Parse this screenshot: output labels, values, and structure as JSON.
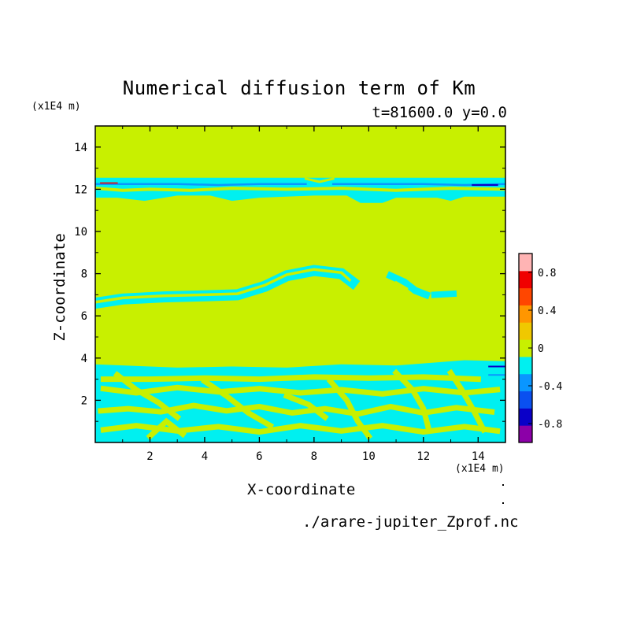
{
  "chart_data": {
    "type": "heatmap",
    "title": "Numerical diffusion term of Km",
    "subtitle": "t=81600.0 y=0.0",
    "xlabel": "X-coordinate",
    "ylabel": "Z-coordinate",
    "x_unit": "(x1E4 m)",
    "y_unit": "(x1E4 m)",
    "xlim": [
      0,
      15
    ],
    "ylim": [
      0,
      15
    ],
    "x_ticks": [
      "2",
      "4",
      "6",
      "8",
      "10",
      "12",
      "14"
    ],
    "x_tick_values": [
      2,
      4,
      6,
      8,
      10,
      12,
      14
    ],
    "y_ticks": [
      "2",
      "4",
      "6",
      "8",
      "10",
      "12",
      "14"
    ],
    "y_tick_values": [
      2,
      4,
      6,
      8,
      10,
      12,
      14
    ],
    "background_value_color": "#c8f000",
    "colorbar": {
      "levels": [
        -1.0,
        -0.8,
        -0.6,
        -0.4,
        -0.2,
        0,
        0.2,
        0.4,
        0.6,
        0.8,
        1.0
      ],
      "colors": [
        "#8c00a8",
        "#0a00c8",
        "#0a50f0",
        "#0a96ff",
        "#00f0f0",
        "#c8f000",
        "#f0c800",
        "#ff9600",
        "#ff4600",
        "#f00000",
        "#ffb4b4"
      ],
      "labels": [
        "0.8",
        "0.4",
        "0",
        "-0.4",
        "-0.8"
      ],
      "label_values": [
        0.8,
        0.4,
        0,
        -0.4,
        -0.8
      ]
    }
  },
  "footer": {
    "file": "./arare-jupiter_Zprof.nc"
  }
}
